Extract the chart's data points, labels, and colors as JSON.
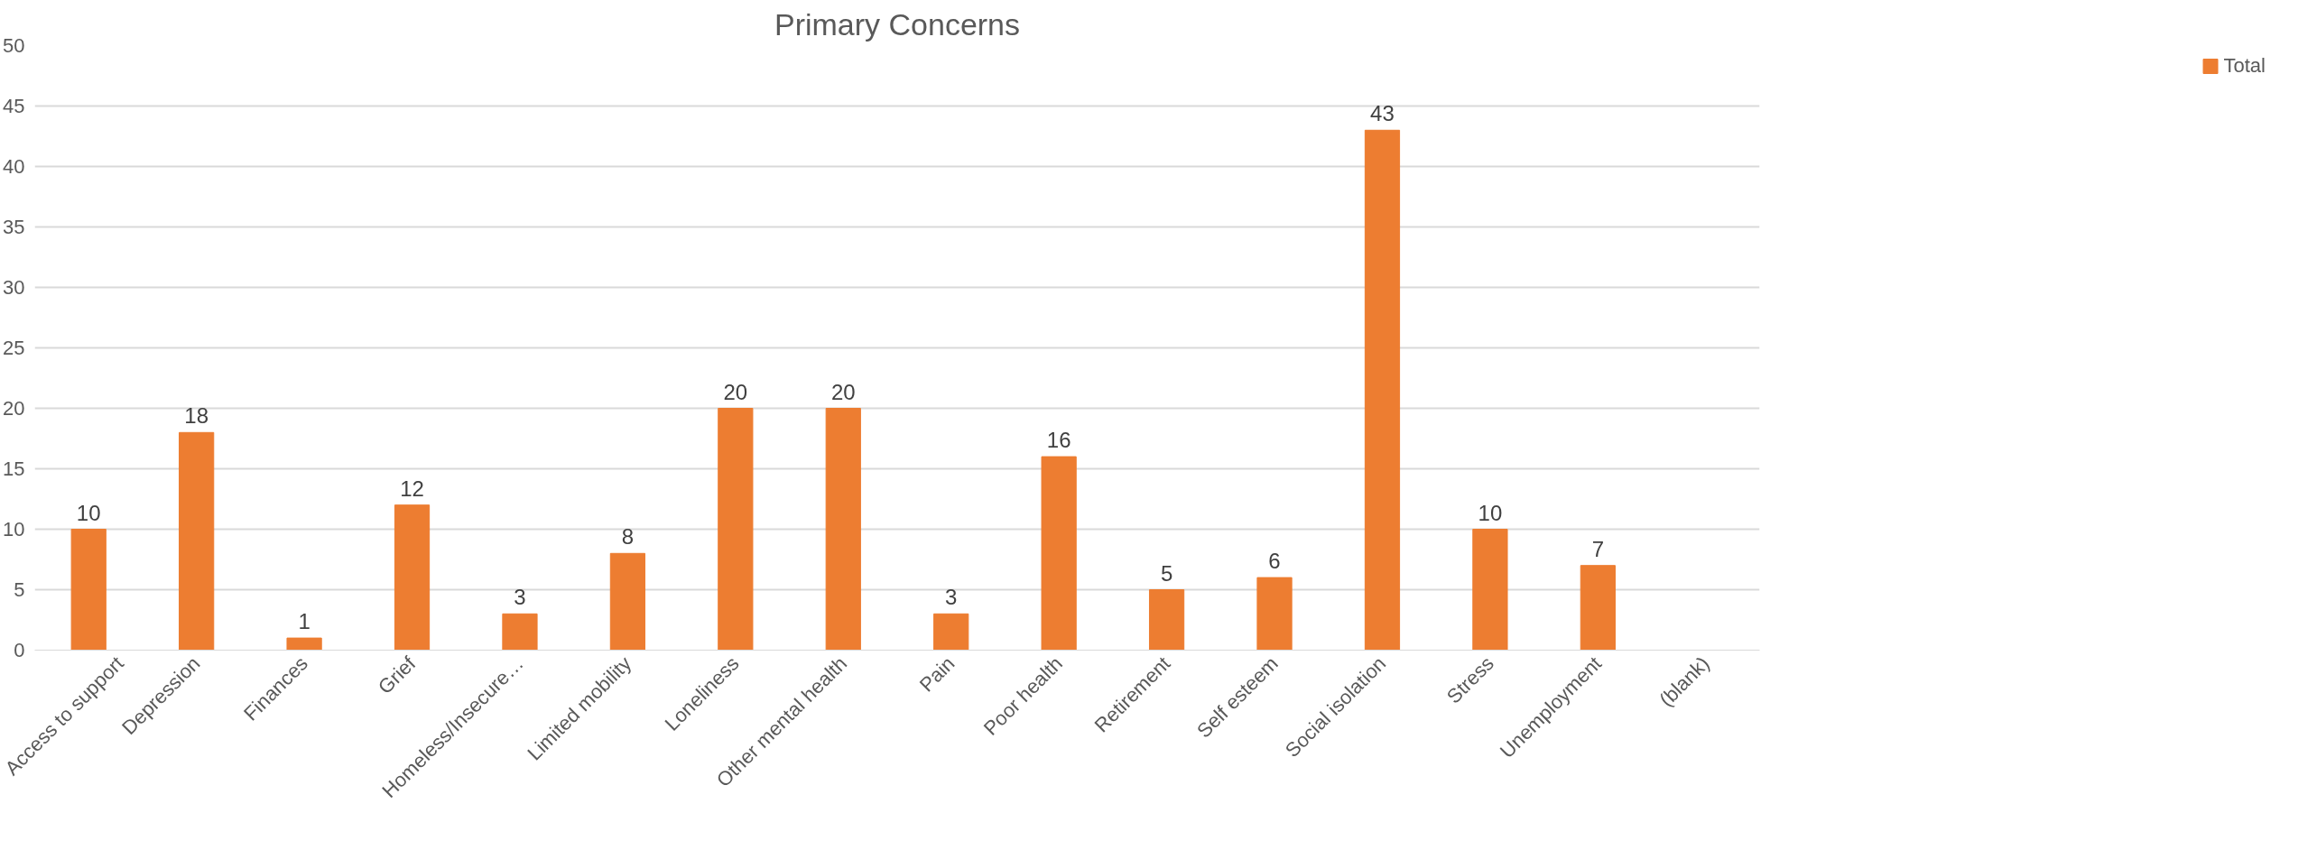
{
  "chart_data": {
    "type": "bar",
    "title": "Primary Concerns",
    "categories": [
      "Access to support",
      "Depression",
      "Finances",
      "Grief",
      "Homeless/Insecure…",
      "Limited mobility",
      "Loneliness",
      "Other mental health",
      "Pain",
      "Poor health",
      "Retirement",
      "Self esteem",
      "Social isolation",
      "Stress",
      "Unemployment",
      "(blank)"
    ],
    "series": [
      {
        "name": "Total",
        "color": "#ed7d31",
        "values": [
          10,
          18,
          1,
          12,
          3,
          8,
          20,
          20,
          3,
          16,
          5,
          6,
          43,
          10,
          7,
          null
        ]
      }
    ],
    "ylim": [
      0,
      50
    ],
    "yticks": [
      0,
      5,
      10,
      15,
      20,
      25,
      30,
      35,
      40,
      45,
      50
    ],
    "grid": "y",
    "legend": "right",
    "data_labels": true
  }
}
